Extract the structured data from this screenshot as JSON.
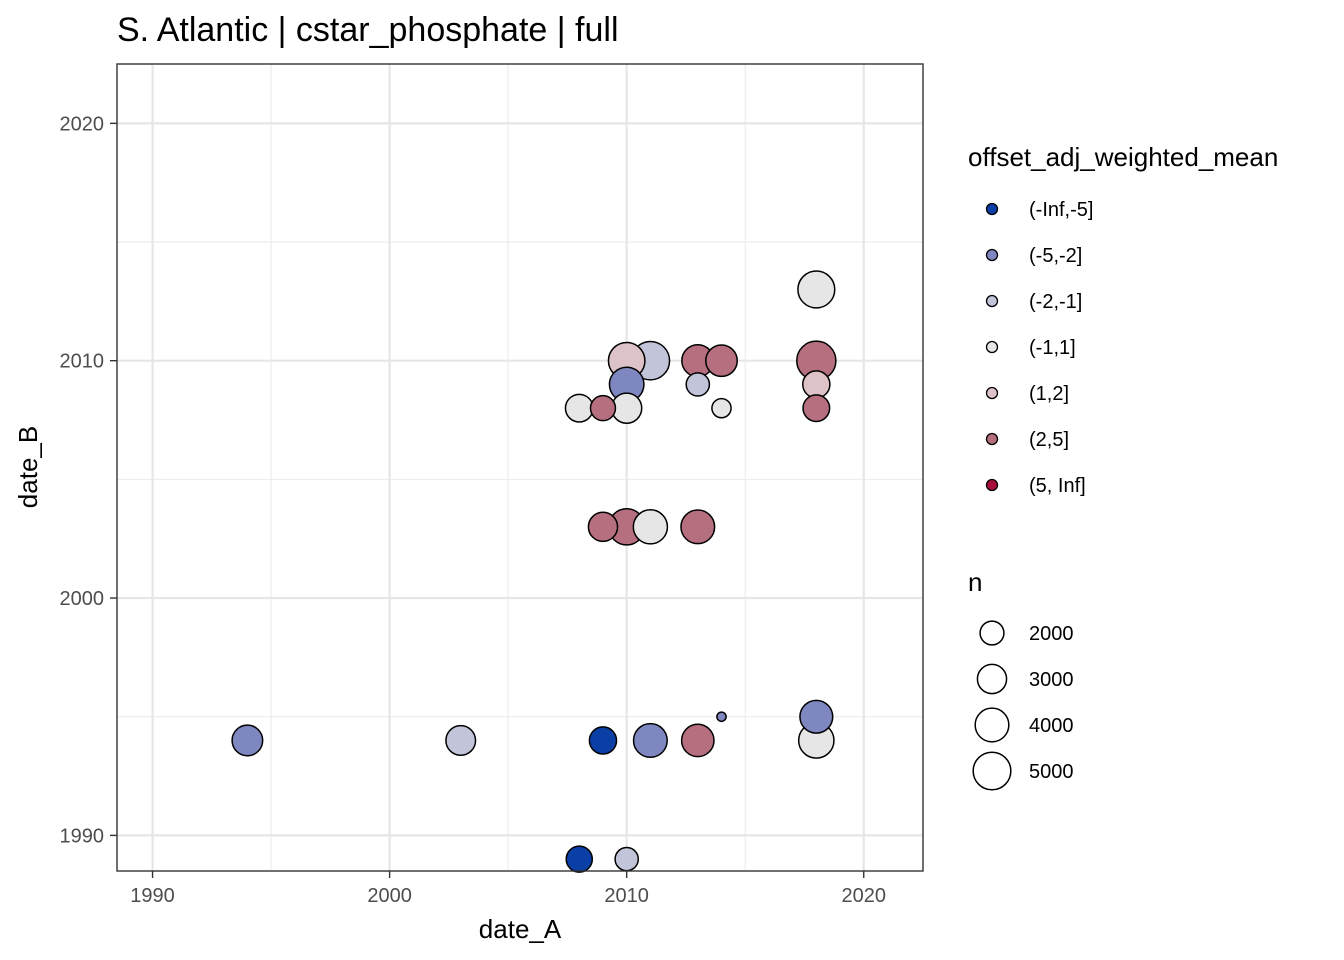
{
  "title": "S. Atlantic | cstar_phosphate | full",
  "chart_data": {
    "type": "scatter",
    "title": "S. Atlantic | cstar_phosphate | full",
    "xlabel": "date_A",
    "ylabel": "date_B",
    "xlim": [
      1988.5,
      2022.5
    ],
    "ylim": [
      1988.5,
      2022.5
    ],
    "x_ticks": [
      1990,
      2000,
      2010,
      2020
    ],
    "y_ticks": [
      1990,
      2000,
      2010,
      2020
    ],
    "x_tick_labels": [
      "1990",
      "2000",
      "2010",
      "2020"
    ],
    "y_tick_labels": [
      "1990",
      "2000",
      "2010",
      "2020"
    ],
    "grid": true,
    "color_legend": {
      "title": "offset_adj_weighted_mean",
      "placement": "right",
      "categories": [
        {
          "label": "(-Inf,-5]",
          "color": "#0a3fa6"
        },
        {
          "label": "(-5,-2]",
          "color": "#7f87c0"
        },
        {
          "label": "(-2,-1]",
          "color": "#c2c5d9"
        },
        {
          "label": "(-1,1]",
          "color": "#e6e6e6"
        },
        {
          "label": "(1,2]",
          "color": "#ddc3c8"
        },
        {
          "label": "(2,5]",
          "color": "#b56f7e"
        },
        {
          "label": "(5, Inf]",
          "color": "#a50f3a"
        }
      ]
    },
    "size_legend": {
      "title": "n",
      "placement": "right",
      "values": [
        2000,
        3000,
        4000,
        5000
      ],
      "labels": [
        "2000",
        "3000",
        "4000",
        "5000"
      ]
    },
    "points": [
      {
        "x": 1994,
        "y": 1994,
        "category": "(-5,-2]",
        "n": 3300
      },
      {
        "x": 2003,
        "y": 1994,
        "category": "(-2,-1]",
        "n": 3100
      },
      {
        "x": 2009,
        "y": 1994,
        "category": "(-Inf,-5]",
        "n": 2600
      },
      {
        "x": 2011,
        "y": 1994,
        "category": "(-5,-2]",
        "n": 4000
      },
      {
        "x": 2013,
        "y": 1994,
        "category": "(2,5]",
        "n": 3700
      },
      {
        "x": 2018,
        "y": 1994,
        "category": "(-1,1]",
        "n": 4400
      },
      {
        "x": 2014,
        "y": 1995,
        "category": "(-5,-2]",
        "n": 300
      },
      {
        "x": 2018,
        "y": 1995,
        "category": "(-5,-2]",
        "n": 3800
      },
      {
        "x": 2008,
        "y": 1989,
        "category": "(-Inf,-5]",
        "n": 2400
      },
      {
        "x": 2010,
        "y": 1989,
        "category": "(-2,-1]",
        "n": 1900
      },
      {
        "x": 2009,
        "y": 2003,
        "category": "(2,5]",
        "n": 3000
      },
      {
        "x": 2010,
        "y": 2003,
        "category": "(2,5]",
        "n": 4600
      },
      {
        "x": 2011,
        "y": 2003,
        "category": "(-1,1]",
        "n": 4100
      },
      {
        "x": 2013,
        "y": 2003,
        "category": "(2,5]",
        "n": 4000
      },
      {
        "x": 2008,
        "y": 2008,
        "category": "(-1,1]",
        "n": 2700
      },
      {
        "x": 2009,
        "y": 2008,
        "category": "(2,5]",
        "n": 2200
      },
      {
        "x": 2010,
        "y": 2008,
        "category": "(-1,1]",
        "n": 3200
      },
      {
        "x": 2014,
        "y": 2008,
        "category": "(-1,1]",
        "n": 1300
      },
      {
        "x": 2018,
        "y": 2008,
        "category": "(2,5]",
        "n": 2500
      },
      {
        "x": 2010,
        "y": 2009,
        "category": "(-5,-2]",
        "n": 4200
      },
      {
        "x": 2013,
        "y": 2009,
        "category": "(-2,-1]",
        "n": 1900
      },
      {
        "x": 2018,
        "y": 2009,
        "category": "(1,2]",
        "n": 2600
      },
      {
        "x": 2010,
        "y": 2010,
        "category": "(1,2]",
        "n": 4700
      },
      {
        "x": 2011,
        "y": 2010,
        "category": "(-2,-1]",
        "n": 5200
      },
      {
        "x": 2013,
        "y": 2010,
        "category": "(2,5]",
        "n": 3600
      },
      {
        "x": 2014,
        "y": 2010,
        "category": "(2,5]",
        "n": 3500
      },
      {
        "x": 2018,
        "y": 2010,
        "category": "(2,5]",
        "n": 5400
      },
      {
        "x": 2018,
        "y": 2013,
        "category": "(-1,1]",
        "n": 4800
      }
    ]
  }
}
